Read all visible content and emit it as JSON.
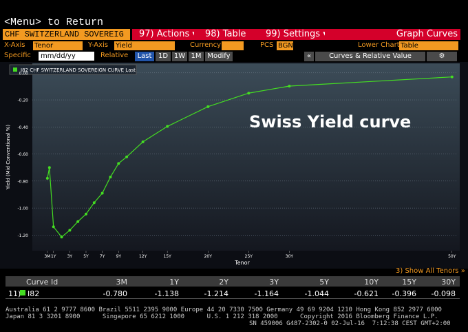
{
  "menu": "<Menu> to Return",
  "toolbar": {
    "security": "CHF SWITZERLAND SOVEREIG",
    "actions": "97) Actions",
    "table": "98) Table",
    "settings": "99) Settings",
    "graph": "Graph Curves"
  },
  "controls": {
    "x_axis_label": "X-Axis",
    "x_axis": "Tenor",
    "y_axis_label": "Y-Axis",
    "y_axis": "Yield",
    "currency_label": "Currency",
    "pcs_label": "PCS",
    "pcs": "BGN",
    "lower_chart_label": "Lower Chart",
    "lower_chart": "Table",
    "specific": "Specific",
    "date": "mm/dd/yy",
    "relative": "Relative",
    "ranges": [
      "Last",
      "1D",
      "1W",
      "1M"
    ],
    "modify": "Modify",
    "panel": "Curves & Relative Value"
  },
  "chart_data": {
    "type": "line",
    "annotation": "Swiss Yield curve",
    "xlabel": "Tenor",
    "ylabel": "Yield (Mid Conventional %)",
    "x": [
      0.25,
      0.5,
      1,
      2,
      3,
      4,
      5,
      6,
      7,
      8,
      9,
      10,
      12,
      15,
      20,
      25,
      30,
      50
    ],
    "series": [
      {
        "name": "I82 CHF SWITZERLAND SOVEREIGN CURVE Last",
        "color": "#44dd22",
        "values": [
          -0.78,
          -0.7,
          -1.138,
          -1.214,
          -1.164,
          -1.1,
          -1.044,
          -0.96,
          -0.89,
          -0.77,
          -0.67,
          -0.621,
          -0.51,
          -0.396,
          -0.25,
          -0.15,
          -0.098,
          -0.03
        ]
      }
    ],
    "xlim": [
      -1.6,
      50.7
    ],
    "ylim": [
      -1.3,
      0.06
    ],
    "xticks": [
      {
        "value": 0.25,
        "label": "3M"
      },
      {
        "value": 1,
        "label": "1Y"
      },
      {
        "value": 3,
        "label": "3Y"
      },
      {
        "value": 5,
        "label": "5Y"
      },
      {
        "value": 7,
        "label": "7Y"
      },
      {
        "value": 9,
        "label": "9Y"
      },
      {
        "value": 12,
        "label": "12Y"
      },
      {
        "value": 15,
        "label": "15Y"
      },
      {
        "value": 20,
        "label": "20Y"
      },
      {
        "value": 25,
        "label": "25Y"
      },
      {
        "value": 30,
        "label": "30Y"
      },
      {
        "value": 50,
        "label": "50Y"
      }
    ],
    "yticks": [
      {
        "value": 0,
        "label": "0.00"
      },
      {
        "value": -0.2,
        "label": "-0.20"
      },
      {
        "value": -0.4,
        "label": "-0.40"
      },
      {
        "value": -0.6,
        "label": "-0.60"
      },
      {
        "value": -0.8,
        "label": "-0.80"
      },
      {
        "value": -1,
        "label": "-1.00"
      },
      {
        "value": -1.2,
        "label": "-1.20"
      }
    ],
    "grid": true
  },
  "table": {
    "link": "3) Show All Tenors »",
    "header": [
      "Curve Id",
      "3M",
      "1Y",
      "2Y",
      "3Y",
      "5Y",
      "10Y",
      "15Y",
      "30Y"
    ],
    "rows": [
      [
        "11)",
        "I82",
        "-0.780",
        "-1.138",
        "-1.214",
        "-1.164",
        "-1.044",
        "-0.621",
        "-0.396",
        "-0.098"
      ]
    ]
  },
  "footer": [
    "Australia 61 2 9777 8600 Brazil 5511 2395 9000 Europe 44 20 7330 7500 Germany 49 69 9204 1210 Hong Kong 852 2977 6000",
    "Japan 81 3 3201 8900      Singapore 65 6212 1000      U.S. 1 212 318 2000      Copyright 2016 Bloomberg Finance L.P.",
    "SN 459006 G487-2302-0 02-Jul-16  7:12:38 CEST GMT+2:00"
  ]
}
